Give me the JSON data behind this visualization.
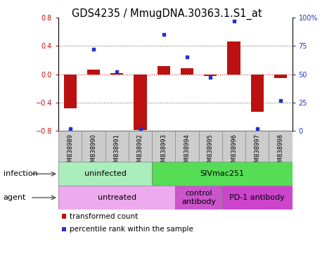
{
  "title": "GDS4235 / MmugDNA.30363.1.S1_at",
  "samples": [
    "GSM838989",
    "GSM838990",
    "GSM838991",
    "GSM838992",
    "GSM838993",
    "GSM838994",
    "GSM838995",
    "GSM838996",
    "GSM838997",
    "GSM838998"
  ],
  "transformed_count": [
    -0.48,
    0.07,
    0.02,
    -0.79,
    0.12,
    0.09,
    -0.02,
    0.46,
    -0.53,
    -0.05
  ],
  "percentile_rank": [
    2,
    72,
    52,
    2,
    85,
    65,
    47,
    97,
    2,
    27
  ],
  "ylim_left": [
    -0.8,
    0.8
  ],
  "ylim_right": [
    0,
    100
  ],
  "yticks_left": [
    -0.8,
    -0.4,
    0.0,
    0.4,
    0.8
  ],
  "yticks_right": [
    0,
    25,
    50,
    75,
    100
  ],
  "ytick_labels_right": [
    "0",
    "25",
    "50",
    "75",
    "100%"
  ],
  "bar_color": "#bb1111",
  "dot_color": "#2233cc",
  "zero_line_color": "#cc2222",
  "grid_color": "#555555",
  "infection_groups": [
    {
      "label": "uninfected",
      "start": 0,
      "end": 4,
      "color": "#aaeebb"
    },
    {
      "label": "SIVmac251",
      "start": 4,
      "end": 10,
      "color": "#55dd55"
    }
  ],
  "agent_groups": [
    {
      "label": "untreated",
      "start": 0,
      "end": 5,
      "color": "#eeaaee"
    },
    {
      "label": "control\nantibody",
      "start": 5,
      "end": 7,
      "color": "#cc55cc"
    },
    {
      "label": "PD-1 antibody",
      "start": 7,
      "end": 10,
      "color": "#cc44cc"
    }
  ],
  "legend": [
    {
      "label": "transformed count",
      "color": "#bb1111"
    },
    {
      "label": "percentile rank within the sample",
      "color": "#2233cc"
    }
  ],
  "infection_label": "infection",
  "agent_label": "agent",
  "title_fontsize": 10.5,
  "tick_fontsize": 7,
  "sample_fontsize": 6,
  "row_label_fontsize": 8,
  "group_fontsize": 8,
  "legend_fontsize": 7.5
}
